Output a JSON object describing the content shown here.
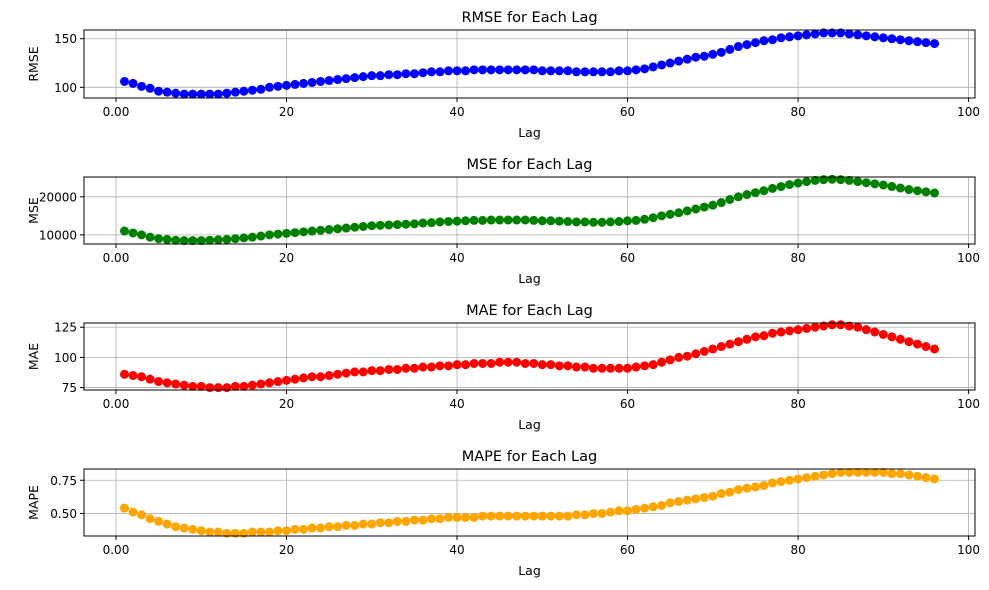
{
  "figure": {
    "background": "#ffffff",
    "grid_color": "#b0b0b0"
  },
  "chart_data": [
    {
      "type": "scatter",
      "title": "RMSE for Each Lag",
      "xlabel": "Lag",
      "ylabel": "RMSE",
      "color": "#0000ff",
      "xlim": [
        -3.75,
        100.75
      ],
      "ylim": [
        89,
        159
      ],
      "xticks": [
        0,
        20,
        40,
        60,
        80,
        100
      ],
      "yticks": [
        100,
        150
      ],
      "grid": true,
      "x": [
        1,
        2,
        3,
        4,
        5,
        6,
        7,
        8,
        9,
        10,
        11,
        12,
        13,
        14,
        15,
        16,
        17,
        18,
        19,
        20,
        21,
        22,
        23,
        24,
        25,
        26,
        27,
        28,
        29,
        30,
        31,
        32,
        33,
        34,
        35,
        36,
        37,
        38,
        39,
        40,
        41,
        42,
        43,
        44,
        45,
        46,
        47,
        48,
        49,
        50,
        51,
        52,
        53,
        54,
        55,
        56,
        57,
        58,
        59,
        60,
        61,
        62,
        63,
        64,
        65,
        66,
        67,
        68,
        69,
        70,
        71,
        72,
        73,
        74,
        75,
        76,
        77,
        78,
        79,
        80,
        81,
        82,
        83,
        84,
        85,
        86,
        87,
        88,
        89,
        90,
        91,
        92,
        93,
        94,
        95,
        96
      ],
      "y": [
        106,
        104,
        101,
        99,
        96,
        95,
        94,
        93,
        93,
        93,
        93,
        93,
        94,
        95,
        96,
        97,
        98,
        100,
        101,
        102,
        103,
        104,
        105,
        106,
        107,
        108,
        109,
        110,
        111,
        112,
        112,
        113,
        113,
        114,
        114,
        115,
        116,
        116,
        117,
        117,
        117,
        118,
        118,
        118,
        118,
        118,
        118,
        118,
        118,
        117,
        117,
        117,
        117,
        116,
        116,
        116,
        116,
        116,
        117,
        117,
        118,
        119,
        121,
        123,
        125,
        127,
        129,
        131,
        132,
        134,
        136,
        139,
        142,
        144,
        146,
        148,
        149,
        151,
        152,
        153,
        154,
        155,
        156,
        156,
        156,
        155,
        154,
        153,
        152,
        151,
        150,
        149,
        148,
        147,
        146,
        145
      ]
    },
    {
      "type": "scatter",
      "title": "MSE for Each Lag",
      "xlabel": "Lag",
      "ylabel": "MSE",
      "color": "#008000",
      "xlim": [
        -3.75,
        100.75
      ],
      "ylim": [
        7600,
        25200
      ],
      "xticks": [
        0,
        20,
        40,
        60,
        80,
        100
      ],
      "yticks": [
        10000,
        20000
      ],
      "grid": true,
      "x": [
        1,
        2,
        3,
        4,
        5,
        6,
        7,
        8,
        9,
        10,
        11,
        12,
        13,
        14,
        15,
        16,
        17,
        18,
        19,
        20,
        21,
        22,
        23,
        24,
        25,
        26,
        27,
        28,
        29,
        30,
        31,
        32,
        33,
        34,
        35,
        36,
        37,
        38,
        39,
        40,
        41,
        42,
        43,
        44,
        45,
        46,
        47,
        48,
        49,
        50,
        51,
        52,
        53,
        54,
        55,
        56,
        57,
        58,
        59,
        60,
        61,
        62,
        63,
        64,
        65,
        66,
        67,
        68,
        69,
        70,
        71,
        72,
        73,
        74,
        75,
        76,
        77,
        78,
        79,
        80,
        81,
        82,
        83,
        84,
        85,
        86,
        87,
        88,
        89,
        90,
        91,
        92,
        93,
        94,
        95,
        96
      ],
      "y": [
        11000,
        10500,
        10000,
        9400,
        9000,
        8800,
        8600,
        8500,
        8500,
        8500,
        8600,
        8700,
        8800,
        9000,
        9200,
        9400,
        9700,
        10000,
        10200,
        10400,
        10600,
        10800,
        11000,
        11200,
        11400,
        11600,
        11800,
        12000,
        12200,
        12400,
        12500,
        12600,
        12700,
        12800,
        12900,
        13100,
        13200,
        13400,
        13500,
        13600,
        13700,
        13800,
        13800,
        13900,
        13900,
        13900,
        13900,
        13900,
        13800,
        13700,
        13700,
        13600,
        13500,
        13400,
        13400,
        13300,
        13300,
        13400,
        13500,
        13700,
        13800,
        14100,
        14500,
        15000,
        15400,
        15800,
        16300,
        16800,
        17300,
        17800,
        18500,
        19300,
        20000,
        20600,
        21100,
        21600,
        22200,
        22700,
        23200,
        23600,
        24000,
        24300,
        24500,
        24600,
        24500,
        24300,
        24000,
        23700,
        23400,
        23100,
        22700,
        22300,
        21900,
        21600,
        21300,
        21000
      ]
    },
    {
      "type": "scatter",
      "title": "MAE for Each Lag",
      "xlabel": "Lag",
      "ylabel": "MAE",
      "color": "#ff0000",
      "xlim": [
        -3.75,
        100.75
      ],
      "ylim": [
        73,
        128.5
      ],
      "xticks": [
        0,
        20,
        40,
        60,
        80,
        100
      ],
      "yticks": [
        75,
        100,
        125
      ],
      "grid": true,
      "x": [
        1,
        2,
        3,
        4,
        5,
        6,
        7,
        8,
        9,
        10,
        11,
        12,
        13,
        14,
        15,
        16,
        17,
        18,
        19,
        20,
        21,
        22,
        23,
        24,
        25,
        26,
        27,
        28,
        29,
        30,
        31,
        32,
        33,
        34,
        35,
        36,
        37,
        38,
        39,
        40,
        41,
        42,
        43,
        44,
        45,
        46,
        47,
        48,
        49,
        50,
        51,
        52,
        53,
        54,
        55,
        56,
        57,
        58,
        59,
        60,
        61,
        62,
        63,
        64,
        65,
        66,
        67,
        68,
        69,
        70,
        71,
        72,
        73,
        74,
        75,
        76,
        77,
        78,
        79,
        80,
        81,
        82,
        83,
        84,
        85,
        86,
        87,
        88,
        89,
        90,
        91,
        92,
        93,
        94,
        95,
        96
      ],
      "y": [
        86,
        85,
        84,
        82,
        80,
        79,
        78,
        77,
        76,
        76,
        75,
        75,
        75,
        76,
        76,
        77,
        78,
        79,
        80,
        81,
        82,
        83,
        84,
        84,
        85,
        86,
        87,
        88,
        88,
        89,
        89,
        90,
        90,
        91,
        91,
        92,
        92,
        93,
        93,
        94,
        94,
        95,
        95,
        95,
        96,
        96,
        96,
        95,
        95,
        94,
        94,
        93,
        93,
        92,
        92,
        91,
        91,
        91,
        91,
        91,
        92,
        93,
        94,
        96,
        98,
        100,
        101,
        103,
        105,
        107,
        109,
        111,
        113,
        115,
        117,
        118,
        120,
        121,
        122,
        123,
        124,
        125,
        126,
        127,
        127,
        126,
        125,
        123,
        121,
        119,
        117,
        115,
        113,
        111,
        109,
        107
      ]
    },
    {
      "type": "scatter",
      "title": "MAPE for Each Lag",
      "xlabel": "Lag",
      "ylabel": "MAPE",
      "color": "#ffa500",
      "xlim": [
        -3.75,
        100.75
      ],
      "ylim": [
        0.33,
        0.835
      ],
      "xticks": [
        0,
        20,
        40,
        60,
        80,
        100
      ],
      "yticks": [
        0.5,
        0.75
      ],
      "ytick_labels": [
        "0.50",
        "0.75"
      ],
      "grid": true,
      "x": [
        1,
        2,
        3,
        4,
        5,
        6,
        7,
        8,
        9,
        10,
        11,
        12,
        13,
        14,
        15,
        16,
        17,
        18,
        19,
        20,
        21,
        22,
        23,
        24,
        25,
        26,
        27,
        28,
        29,
        30,
        31,
        32,
        33,
        34,
        35,
        36,
        37,
        38,
        39,
        40,
        41,
        42,
        43,
        44,
        45,
        46,
        47,
        48,
        49,
        50,
        51,
        52,
        53,
        54,
        55,
        56,
        57,
        58,
        59,
        60,
        61,
        62,
        63,
        64,
        65,
        66,
        67,
        68,
        69,
        70,
        71,
        72,
        73,
        74,
        75,
        76,
        77,
        78,
        79,
        80,
        81,
        82,
        83,
        84,
        85,
        86,
        87,
        88,
        89,
        90,
        91,
        92,
        93,
        94,
        95,
        96
      ],
      "y": [
        0.54,
        0.51,
        0.49,
        0.46,
        0.44,
        0.42,
        0.4,
        0.39,
        0.38,
        0.37,
        0.36,
        0.36,
        0.35,
        0.35,
        0.35,
        0.36,
        0.36,
        0.36,
        0.37,
        0.37,
        0.38,
        0.38,
        0.39,
        0.39,
        0.4,
        0.4,
        0.41,
        0.41,
        0.42,
        0.42,
        0.43,
        0.43,
        0.44,
        0.44,
        0.45,
        0.45,
        0.46,
        0.46,
        0.47,
        0.47,
        0.47,
        0.47,
        0.48,
        0.48,
        0.48,
        0.48,
        0.48,
        0.48,
        0.48,
        0.48,
        0.48,
        0.48,
        0.48,
        0.49,
        0.49,
        0.5,
        0.5,
        0.51,
        0.52,
        0.52,
        0.53,
        0.54,
        0.55,
        0.56,
        0.58,
        0.59,
        0.6,
        0.61,
        0.62,
        0.63,
        0.65,
        0.66,
        0.68,
        0.69,
        0.7,
        0.71,
        0.73,
        0.74,
        0.75,
        0.76,
        0.77,
        0.78,
        0.79,
        0.8,
        0.81,
        0.81,
        0.81,
        0.81,
        0.81,
        0.81,
        0.8,
        0.8,
        0.79,
        0.78,
        0.77,
        0.76
      ]
    }
  ]
}
